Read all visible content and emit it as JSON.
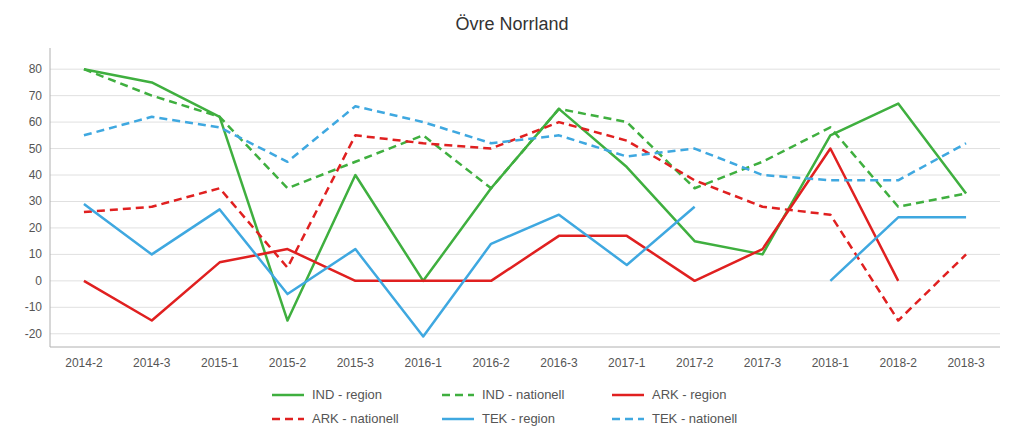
{
  "chart_data": {
    "type": "line",
    "title": "Övre Norrland",
    "categories": [
      "2014-2",
      "2014-3",
      "2015-1",
      "2015-2",
      "2015-3",
      "2016-1",
      "2016-2",
      "2016-3",
      "2017-1",
      "2017-2",
      "2017-3",
      "2018-1",
      "2018-2",
      "2018-3"
    ],
    "series": [
      {
        "name": "IND - region",
        "color": "#3faf3f",
        "line_style": "solid",
        "values": [
          80,
          75,
          62,
          -15,
          40,
          0,
          35,
          65,
          43,
          15,
          10,
          55,
          67,
          33
        ]
      },
      {
        "name": "IND - nationell",
        "color": "#3faf3f",
        "line_style": "dashed",
        "values": [
          80,
          70,
          62,
          35,
          45,
          55,
          35,
          65,
          60,
          35,
          45,
          58,
          28,
          33
        ]
      },
      {
        "name": "ARK - region",
        "color": "#e02020",
        "line_style": "solid",
        "values": [
          0,
          -15,
          7,
          12,
          0,
          0,
          0,
          17,
          17,
          0,
          12,
          50,
          0,
          null
        ]
      },
      {
        "name": "ARK - nationell",
        "color": "#e02020",
        "line_style": "dashed",
        "values": [
          26,
          28,
          35,
          5,
          55,
          52,
          50,
          60,
          53,
          38,
          28,
          25,
          -15,
          10
        ]
      },
      {
        "name": "TEK - region",
        "color": "#3fa8e0",
        "line_style": "solid",
        "values": [
          29,
          10,
          27,
          -5,
          12,
          -21,
          14,
          25,
          6,
          28,
          null,
          0,
          24,
          24
        ]
      },
      {
        "name": "TEK - nationell",
        "color": "#3fa8e0",
        "line_style": "dashed",
        "values": [
          55,
          62,
          58,
          45,
          66,
          60,
          52,
          55,
          47,
          50,
          40,
          38,
          38,
          52
        ]
      }
    ],
    "ylim": [
      -25,
      88
    ],
    "yticks": [
      -20,
      -10,
      0,
      10,
      20,
      30,
      40,
      50,
      60,
      70,
      80
    ],
    "grid": true,
    "legend": "bottom"
  }
}
